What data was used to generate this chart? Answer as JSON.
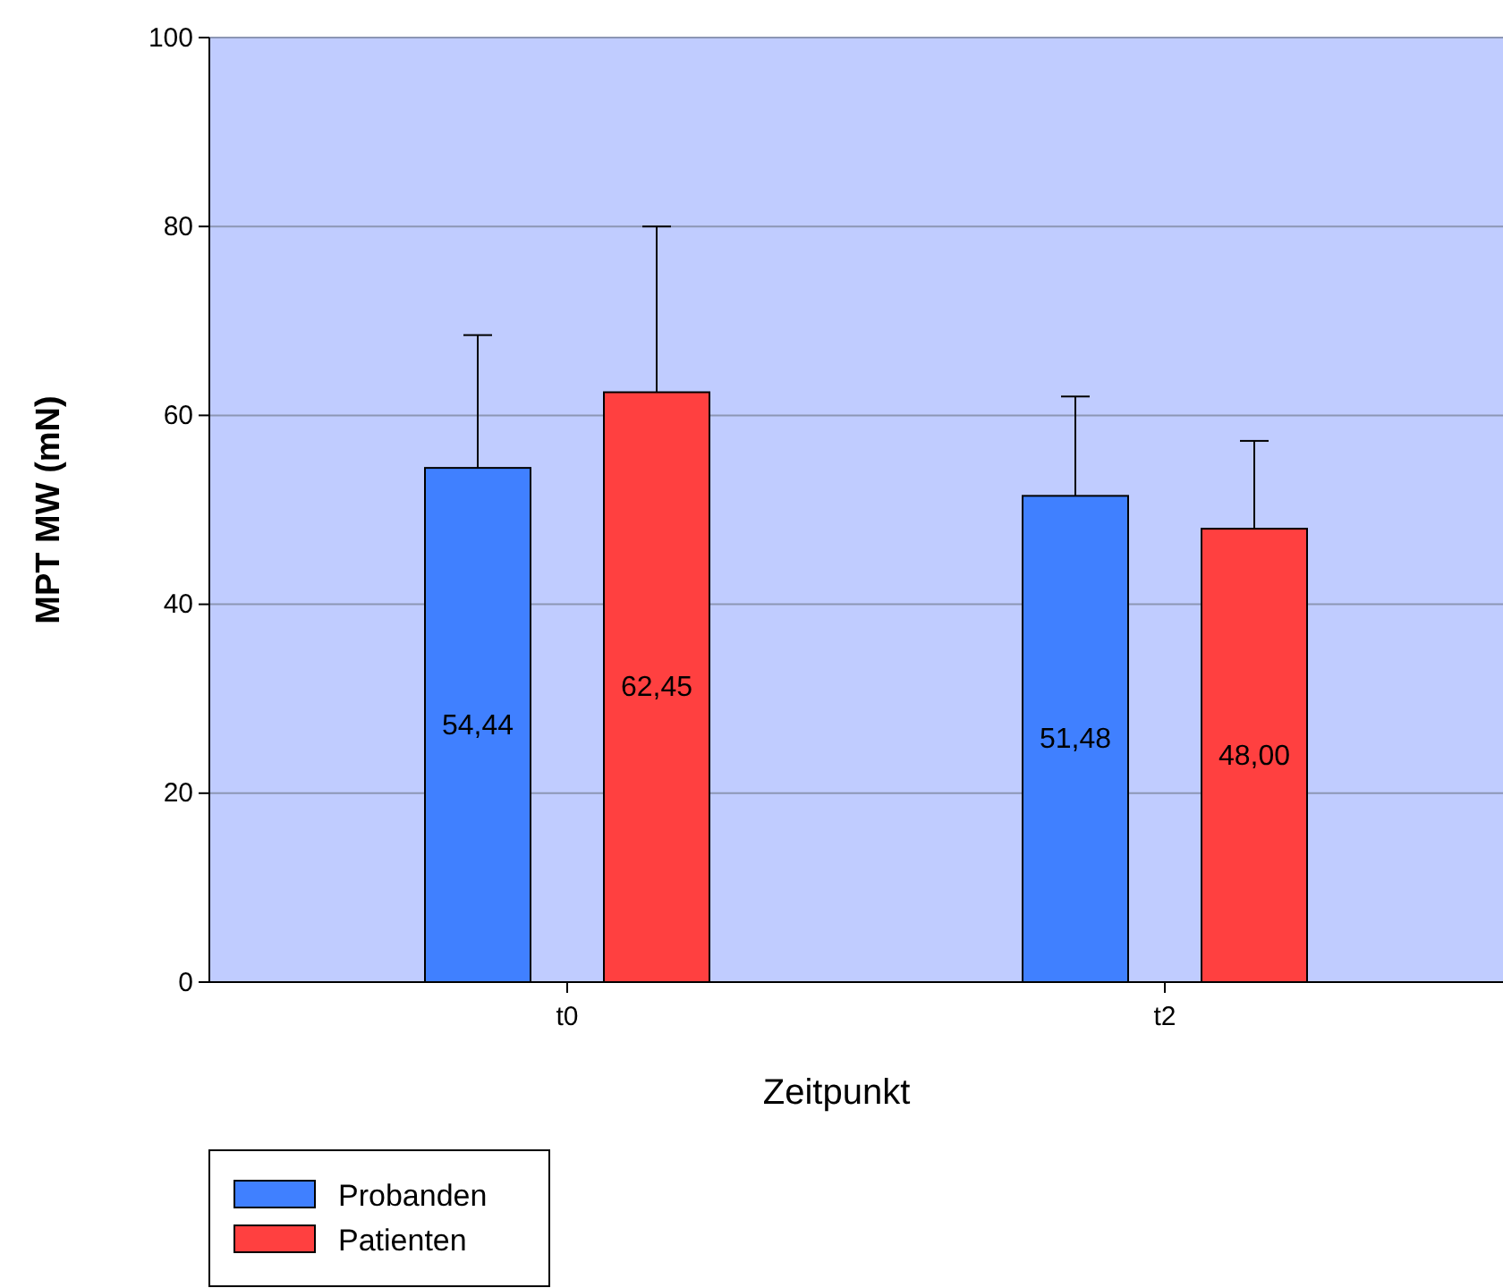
{
  "chart_data": {
    "type": "bar",
    "xlabel": "Zeitpunkt",
    "ylabel": "MPT MW (mN)",
    "categories": [
      "t0",
      "t2"
    ],
    "series": [
      {
        "name": "Probanden",
        "color": "#4080ff",
        "values": [
          54.44,
          51.48
        ],
        "errors": [
          [
            54.44,
            68.5
          ],
          [
            51.48,
            62
          ]
        ],
        "value_labels": [
          "54,44",
          "51,48"
        ]
      },
      {
        "name": "Patienten",
        "color": "#ff4040",
        "values": [
          62.45,
          48.0
        ],
        "errors": [
          [
            62.45,
            80
          ],
          [
            48.0,
            57.3
          ]
        ],
        "value_labels": [
          "62,45",
          "48,00"
        ]
      }
    ],
    "ylim": [
      0,
      100
    ],
    "yticks": [
      0,
      20,
      40,
      60,
      80,
      100
    ],
    "grid": "y",
    "legend": "bottom left"
  }
}
